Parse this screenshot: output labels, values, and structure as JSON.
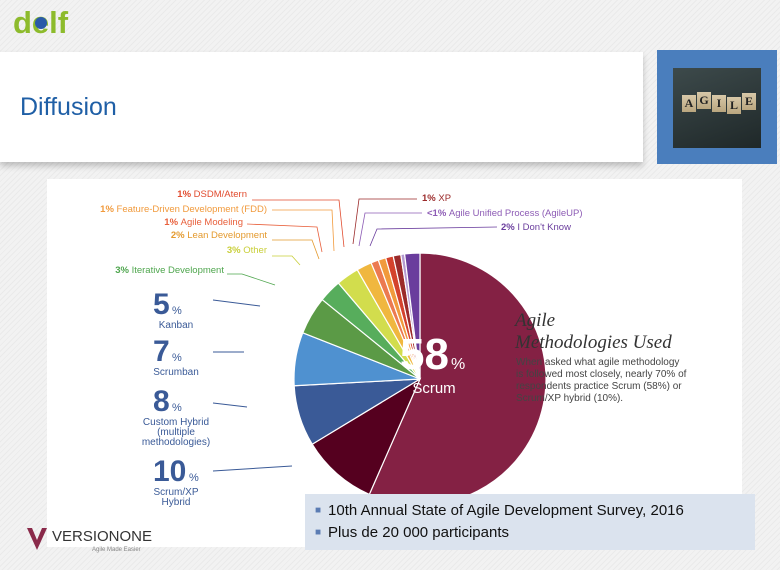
{
  "slide": {
    "logo_text": "delf",
    "title": "Diffusion",
    "photo_tiles": [
      "A",
      "G",
      "I",
      "L",
      "E"
    ]
  },
  "chart_data": {
    "type": "pie",
    "title": "Agile Methodologies Used",
    "title_line1": "Agile",
    "title_line2": "Methodologies Used",
    "description": [
      "When asked what agile methodology",
      "is followed most closely, nearly 70% of",
      "respondents practice Scrum (58%) or",
      "Scrum/XP hybrid (10%)."
    ],
    "center_value": "58",
    "center_unit": "%",
    "center_label": "Scrum",
    "slices": [
      {
        "label": "Scrum",
        "value": 58,
        "color": "#842144"
      },
      {
        "label": "Scrum/XP Hybrid",
        "value": 10,
        "color": "#55001f"
      },
      {
        "label": "Custom Hybrid (multiple methodologies)",
        "value": 8,
        "color": "#3a5a97"
      },
      {
        "label": "Scrumban",
        "value": 7,
        "color": "#4f91d0"
      },
      {
        "label": "Kanban",
        "value": 5,
        "color": "#5b9a46"
      },
      {
        "label": "Iterative Development",
        "value": 3,
        "color": "#57ad5c"
      },
      {
        "label": "Other",
        "value": 3,
        "color": "#d2dd4d"
      },
      {
        "label": "Lean Development",
        "value": 2,
        "color": "#f0b73f"
      },
      {
        "label": "Agile Modeling",
        "value": 1,
        "color": "#ec7a50"
      },
      {
        "label": "Feature-Driven Development (FDD)",
        "value": 1,
        "color": "#f19a3c"
      },
      {
        "label": "DSDM/Atern",
        "value": 1,
        "color": "#d4422c"
      },
      {
        "label": "XP",
        "value": 1,
        "color": "#9b2a2a"
      },
      {
        "label": "Agile Unified Process (AgileUP)",
        "value": 0.5,
        "color": "#b59ad0"
      },
      {
        "label": "I Don't Know",
        "value": 2,
        "color": "#6a3d9d"
      }
    ],
    "big_labels": [
      {
        "pct": "5",
        "unit": "%",
        "name": [
          "Kanban"
        ]
      },
      {
        "pct": "7",
        "unit": "%",
        "name": [
          "Scrumban"
        ]
      },
      {
        "pct": "8",
        "unit": "%",
        "name": [
          "Custom Hybrid",
          "(multiple",
          "methodologies)"
        ]
      },
      {
        "pct": "10",
        "unit": "%",
        "name": [
          "Scrum/XP",
          "Hybrid"
        ]
      }
    ],
    "small_labels_left": [
      {
        "pct": "1%",
        "name": "DSDM/Atern",
        "color": "#e14b2e"
      },
      {
        "pct": "1%",
        "name": "Feature-Driven Development (FDD)",
        "color": "#f19a3c"
      },
      {
        "pct": "1%",
        "name": "Agile Modeling",
        "color": "#e8603c"
      },
      {
        "pct": "2%",
        "name": "Lean Development",
        "color": "#e49a2e"
      },
      {
        "pct": "3%",
        "name": "Other",
        "color": "#c9cf3a"
      },
      {
        "pct": "3%",
        "name": "Iterative Development",
        "color": "#4fa64e"
      }
    ],
    "small_labels_right": [
      {
        "pct": "1%",
        "name": "XP",
        "color": "#9b2a2a"
      },
      {
        "pct": "<1%",
        "name": "Agile Unified Process (AgileUP)",
        "color": "#8d5cb5"
      },
      {
        "pct": "2%",
        "name": "I Don't Know",
        "color": "#6a3d9d"
      }
    ]
  },
  "vendor_logo": {
    "name": "VERSIONONE",
    "tagline": "Agile Made Easier"
  },
  "notes": [
    "10th Annual State of Agile Development Survey, 2016",
    "Plus de 20 000 participants"
  ]
}
